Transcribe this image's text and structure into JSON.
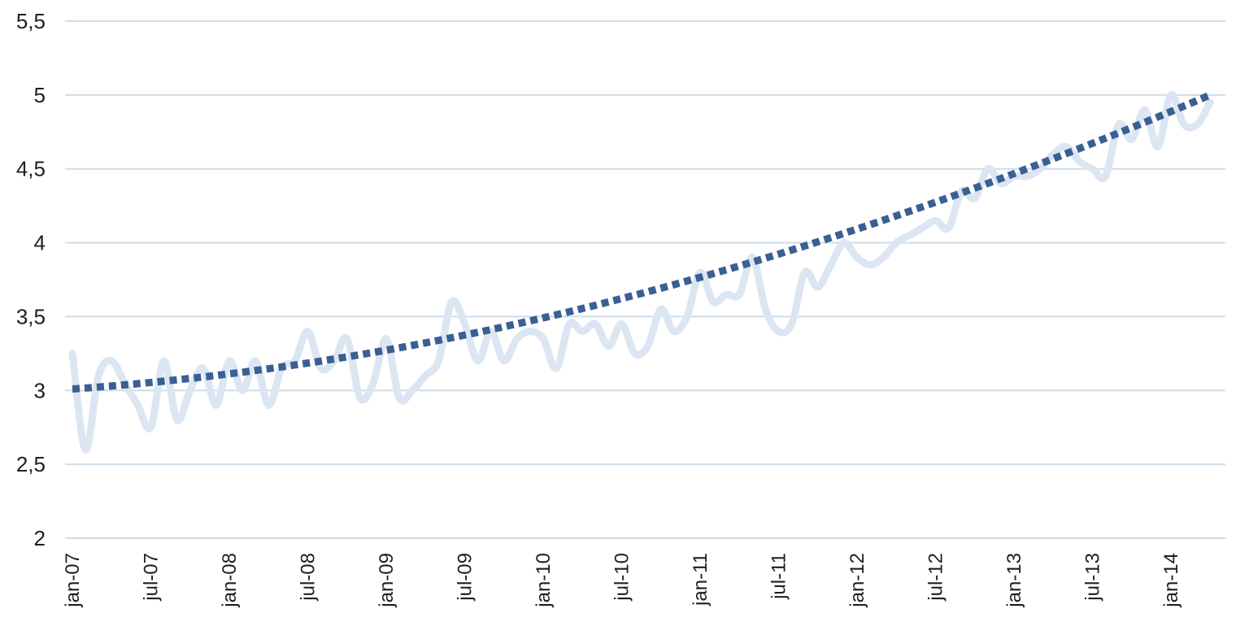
{
  "chart_data": {
    "type": "line",
    "title": "",
    "xlabel": "",
    "ylabel": "",
    "ylim": [
      2,
      5.5
    ],
    "yticks": [
      "2",
      "2,5",
      "3",
      "3,5",
      "4",
      "4,5",
      "5",
      "5,5"
    ],
    "ytick_values": [
      2,
      2.5,
      3,
      3.5,
      4,
      4.5,
      5,
      5.5
    ],
    "xticks": [
      "jan-07",
      "jul-07",
      "jan-08",
      "jul-08",
      "jan-09",
      "jul-09",
      "jan-10",
      "jul-10",
      "jan-11",
      "jul-11",
      "jan-12",
      "jul-12",
      "jan-13",
      "jul-13",
      "jan-14"
    ],
    "x_start": "jan-07",
    "x_end": "jun-14",
    "grid": true,
    "legend": "none",
    "series": [
      {
        "style": "solid",
        "color": "#dce6f2",
        "values": [
          3.25,
          2.6,
          3.1,
          3.2,
          3.05,
          2.9,
          2.75,
          3.2,
          2.8,
          3.0,
          3.15,
          2.9,
          3.2,
          3.0,
          3.2,
          2.9,
          3.15,
          3.2,
          3.4,
          3.15,
          3.2,
          3.35,
          2.95,
          3.05,
          3.35,
          2.95,
          3.0,
          3.1,
          3.2,
          3.6,
          3.45,
          3.2,
          3.4,
          3.2,
          3.35,
          3.4,
          3.35,
          3.15,
          3.45,
          3.4,
          3.45,
          3.3,
          3.45,
          3.25,
          3.3,
          3.55,
          3.4,
          3.5,
          3.8,
          3.6,
          3.65,
          3.65,
          3.9,
          3.55,
          3.4,
          3.45,
          3.8,
          3.7,
          3.85,
          4.0,
          3.9,
          3.85,
          3.9,
          4.0,
          4.05,
          4.1,
          4.15,
          4.1,
          4.35,
          4.3,
          4.5,
          4.4,
          4.45,
          4.45,
          4.5,
          4.6,
          4.65,
          4.55,
          4.5,
          4.45,
          4.8,
          4.7,
          4.9,
          4.65,
          5.0,
          4.8,
          4.8,
          4.95
        ]
      },
      {
        "style": "dotted",
        "color": "#3a5f94",
        "trend": "polynomial",
        "start_value": 3.01,
        "end_value": 5.0
      }
    ]
  }
}
